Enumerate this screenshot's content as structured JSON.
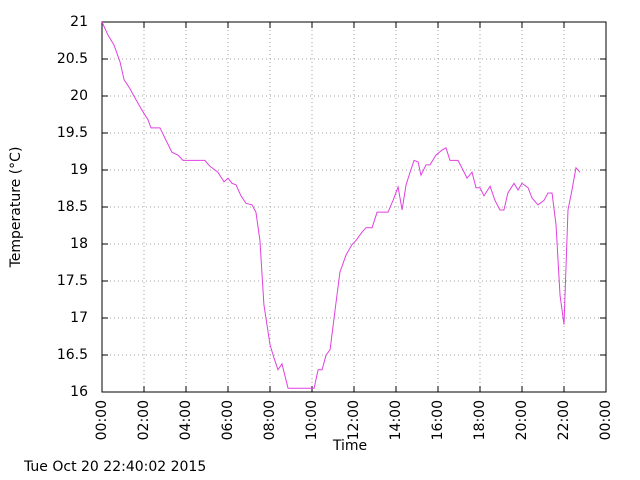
{
  "chart_data": {
    "type": "line",
    "x_label": "Time",
    "y_label": "Temperature (°C)",
    "annotation": "Tue Oct 20 22:40:02 2015",
    "xlim": [
      0,
      24
    ],
    "xticks": [
      {
        "value": 0,
        "label": "00:00"
      },
      {
        "value": 2,
        "label": "02:00"
      },
      {
        "value": 4,
        "label": "04:00"
      },
      {
        "value": 6,
        "label": "06:00"
      },
      {
        "value": 8,
        "label": "08:00"
      },
      {
        "value": 10,
        "label": "10:00"
      },
      {
        "value": 12,
        "label": "12:00"
      },
      {
        "value": 14,
        "label": "14:00"
      },
      {
        "value": 16,
        "label": "16:00"
      },
      {
        "value": 18,
        "label": "18:00"
      },
      {
        "value": 20,
        "label": "20:00"
      },
      {
        "value": 22,
        "label": "22:00"
      },
      {
        "value": 24,
        "label": "00:00"
      }
    ],
    "ylim": [
      16,
      21
    ],
    "yticks": [
      16,
      16.5,
      17,
      17.5,
      18,
      18.5,
      19,
      19.5,
      20,
      20.5,
      21
    ],
    "grid": true,
    "x": [
      0,
      0.29,
      0.57,
      0.86,
      1.05,
      1.33,
      1.62,
      1.9,
      2.19,
      2.33,
      2.76,
      3.05,
      3.33,
      3.62,
      3.86,
      4.9,
      5.14,
      5.52,
      5.81,
      6.0,
      6.19,
      6.38,
      6.62,
      6.86,
      7.14,
      7.33,
      7.52,
      7.71,
      8.0,
      8.19,
      8.38,
      8.57,
      8.86,
      10.1,
      10.29,
      10.48,
      10.67,
      10.86,
      11.1,
      11.33,
      11.62,
      11.9,
      12.1,
      12.38,
      12.57,
      12.86,
      13.1,
      13.62,
      13.86,
      14.1,
      14.29,
      14.48,
      14.67,
      14.86,
      15.05,
      15.19,
      15.43,
      15.62,
      15.9,
      16.19,
      16.38,
      16.57,
      16.95,
      17.19,
      17.38,
      17.62,
      17.81,
      18.0,
      18.19,
      18.48,
      18.71,
      18.95,
      19.14,
      19.33,
      19.62,
      19.81,
      20.0,
      20.29,
      20.48,
      20.76,
      21.05,
      21.24,
      21.43,
      21.62,
      21.81,
      22.0,
      22.19,
      22.38,
      22.57,
      22.76
    ],
    "series": [
      {
        "color": "#e040e0",
        "values": [
          21.0,
          20.82,
          20.69,
          20.46,
          20.22,
          20.1,
          19.95,
          19.81,
          19.68,
          19.57,
          19.57,
          19.4,
          19.24,
          19.2,
          19.13,
          19.13,
          19.05,
          18.97,
          18.84,
          18.89,
          18.82,
          18.8,
          18.65,
          18.55,
          18.53,
          18.43,
          18.05,
          17.18,
          16.64,
          16.46,
          16.3,
          16.38,
          16.05,
          16.05,
          16.3,
          16.3,
          16.5,
          16.57,
          17.11,
          17.62,
          17.85,
          17.99,
          18.05,
          18.16,
          18.22,
          18.22,
          18.43,
          18.43,
          18.59,
          18.77,
          18.46,
          18.8,
          18.97,
          19.13,
          19.11,
          18.93,
          19.07,
          19.07,
          19.2,
          19.27,
          19.3,
          19.13,
          19.13,
          19.0,
          18.89,
          18.97,
          18.76,
          18.76,
          18.65,
          18.78,
          18.59,
          18.46,
          18.46,
          18.69,
          18.82,
          18.73,
          18.82,
          18.76,
          18.62,
          18.53,
          18.59,
          18.69,
          18.69,
          18.26,
          17.31,
          16.91,
          18.46,
          18.73,
          19.03,
          18.97
        ]
      }
    ]
  }
}
